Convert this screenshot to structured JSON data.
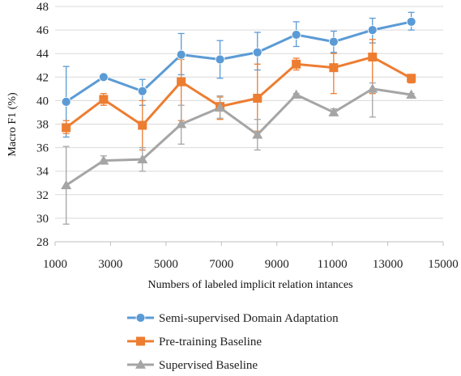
{
  "chart_data": {
    "type": "line",
    "title": "",
    "xlabel": "Numbers of labeled implicit relation intances",
    "ylabel": "Macro F1 (%)",
    "xlim": [
      1000,
      15000
    ],
    "ylim": [
      28,
      48
    ],
    "x_ticks": [
      1000,
      3000,
      5000,
      7000,
      9000,
      11000,
      13000,
      15000
    ],
    "y_ticks": [
      28,
      30,
      32,
      34,
      36,
      38,
      40,
      42,
      44,
      46,
      48
    ],
    "grid": "horizontal",
    "legend_position": "bottom",
    "x": [
      1400,
      2750,
      4150,
      5550,
      6950,
      8300,
      9700,
      11050,
      12450,
      13850
    ],
    "series": [
      {
        "name": "Semi-supervised Domain Adaptation",
        "color": "#5B9BD5",
        "marker": "circle",
        "values": [
          39.9,
          42.0,
          40.8,
          43.9,
          43.5,
          44.1,
          45.6,
          45.0,
          46.0,
          46.7
        ],
        "error_low": [
          36.9,
          41.9,
          39.6,
          42.2,
          41.9,
          42.6,
          44.6,
          44.1,
          44.9,
          46.0
        ],
        "error_high": [
          42.9,
          42.1,
          41.8,
          45.7,
          45.1,
          45.8,
          46.7,
          45.9,
          47.0,
          47.5
        ]
      },
      {
        "name": "Pre-training Baseline",
        "color": "#ED7D31",
        "marker": "square",
        "values": [
          37.7,
          40.1,
          37.9,
          41.6,
          39.5,
          40.2,
          43.1,
          42.8,
          43.7,
          41.9
        ],
        "error_low": [
          37.2,
          39.6,
          35.8,
          38.3,
          38.4,
          37.4,
          42.6,
          40.6,
          40.6,
          41.5
        ],
        "error_high": [
          38.3,
          40.6,
          40.0,
          43.5,
          40.3,
          43.1,
          43.6,
          44.0,
          45.2,
          42.2
        ]
      },
      {
        "name": "Supervised Baseline",
        "color": "#A5A5A5",
        "marker": "triangle",
        "values": [
          32.8,
          34.9,
          35.0,
          38.0,
          39.4,
          37.1,
          40.5,
          39.0,
          41.0,
          40.5
        ],
        "error_low": [
          29.5,
          34.6,
          34.0,
          36.3,
          38.5,
          35.8,
          40.4,
          38.8,
          38.6,
          40.4
        ],
        "error_high": [
          36.1,
          35.3,
          36.0,
          39.6,
          40.4,
          38.4,
          40.6,
          39.3,
          41.5,
          40.6
        ]
      }
    ]
  }
}
